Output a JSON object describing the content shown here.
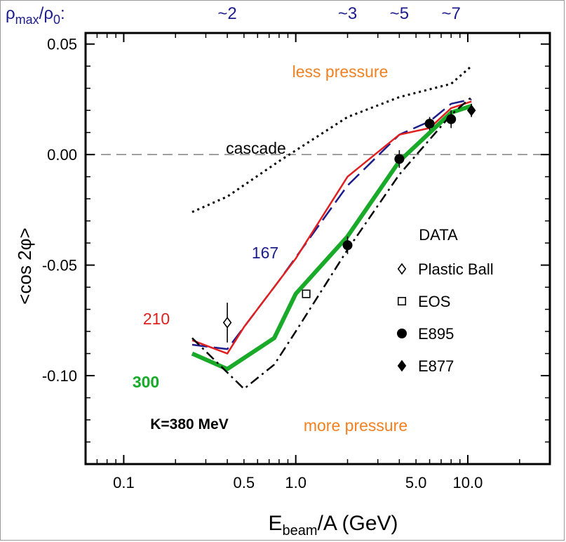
{
  "chart_data": {
    "type": "line",
    "xscale": "log",
    "xlim": [
      0.06,
      30
    ],
    "ylim": [
      -0.14,
      0.055
    ],
    "xlabel_main": "E",
    "xlabel_sub": "beam",
    "xlabel_rest": "/A (GeV)",
    "ylabel": "<cos 2φ>",
    "x_ticks": [
      {
        "value": 0.1,
        "label": "0.1"
      },
      {
        "value": 0.5,
        "label": "0.5"
      },
      {
        "value": 1.0,
        "label": "1.0"
      },
      {
        "value": 5.0,
        "label": "5.0"
      },
      {
        "value": 10.0,
        "label": "10.0"
      }
    ],
    "y_ticks": [
      {
        "value": 0.05,
        "label": "0.05"
      },
      {
        "value": 0.0,
        "label": "0.00"
      },
      {
        "value": -0.05,
        "label": "-0.05"
      },
      {
        "value": -0.1,
        "label": "-0.10"
      }
    ],
    "top_axis": {
      "label_main": "ρ",
      "label_sub1": "max",
      "label_mid": "/ρ",
      "label_sub2": "0",
      "label_end": ":",
      "ticks": [
        {
          "value": 0.4,
          "label": "~2"
        },
        {
          "value": 2.0,
          "label": "~3"
        },
        {
          "value": 4.0,
          "label": "~5"
        },
        {
          "value": 8.0,
          "label": "~7"
        }
      ]
    },
    "series": [
      {
        "name": "cascade",
        "color": "#000000",
        "style": "dotted",
        "width": 3,
        "x": [
          0.25,
          0.4,
          0.8,
          2.0,
          4.0,
          8.0,
          10.5
        ],
        "y": [
          -0.026,
          -0.019,
          -0.003,
          0.017,
          0.026,
          0.032,
          0.04
        ]
      },
      {
        "name": "167",
        "color": "#1c1c8c",
        "style": "dashed",
        "width": 2.5,
        "x": [
          0.25,
          0.4,
          0.8,
          2.0,
          4.0,
          6.0,
          8.0,
          10.5
        ],
        "y": [
          -0.086,
          -0.088,
          -0.057,
          -0.014,
          0.009,
          0.015,
          0.023,
          0.025
        ]
      },
      {
        "name": "210",
        "color": "#e02020",
        "style": "solid",
        "width": 2.5,
        "x": [
          0.25,
          0.4,
          0.5,
          1.0,
          2.0,
          4.0,
          6.0,
          8.0,
          10.5
        ],
        "y": [
          -0.084,
          -0.09,
          -0.078,
          -0.047,
          -0.01,
          0.009,
          0.012,
          0.021,
          0.024
        ]
      },
      {
        "name": "300",
        "color": "#1aaa2a",
        "style": "solid",
        "width": 6,
        "x": [
          0.25,
          0.4,
          0.75,
          1.0,
          2.0,
          4.0,
          8.0,
          10.5
        ],
        "y": [
          -0.09,
          -0.097,
          -0.083,
          -0.063,
          -0.037,
          -0.003,
          0.019,
          0.022
        ]
      },
      {
        "name": "K=380 MeV",
        "color": "#000000",
        "style": "dashdot",
        "width": 2.5,
        "x": [
          0.25,
          0.5,
          0.75,
          1.0,
          2.0,
          4.0,
          8.0,
          10.5
        ],
        "y": [
          -0.083,
          -0.106,
          -0.095,
          -0.08,
          -0.043,
          -0.009,
          0.018,
          0.026
        ]
      }
    ],
    "data_points": [
      {
        "name": "Plastic Ball",
        "marker": "diamond-open",
        "x": 0.4,
        "y": -0.076,
        "err": 0.009
      },
      {
        "name": "EOS",
        "marker": "square-open",
        "x": 1.15,
        "y": -0.063,
        "err": 0
      },
      {
        "name": "E895",
        "marker": "circle-filled",
        "points": [
          {
            "x": 2.0,
            "y": -0.041,
            "err": 0.004
          },
          {
            "x": 4.0,
            "y": -0.002,
            "err": 0.004
          },
          {
            "x": 6.0,
            "y": 0.014,
            "err": 0.003
          },
          {
            "x": 8.0,
            "y": 0.016,
            "err": 0.004
          }
        ]
      },
      {
        "name": "E877",
        "marker": "diamond-filled",
        "points": [
          {
            "x": 10.5,
            "y": 0.02,
            "err": 0.003
          }
        ]
      }
    ],
    "annotations": {
      "less": "less pressure",
      "more": "more pressure",
      "cascade": "cascade",
      "l167": "167",
      "l210": "210",
      "l300": "300",
      "k380": "K=380 MeV",
      "data_title": "DATA"
    },
    "legend": {
      "entries": [
        {
          "marker": "diamond-open",
          "label": "Plastic Ball"
        },
        {
          "marker": "square-open",
          "label": "EOS"
        },
        {
          "marker": "circle-filled",
          "label": "E895"
        },
        {
          "marker": "diamond-filled",
          "label": "E877"
        }
      ]
    },
    "colors": {
      "annotation_orange": "#f08020",
      "top_axis_blue": "#1c1c8c",
      "label_red": "#e02020",
      "label_green": "#1aaa2a",
      "zero_line": "#808080"
    }
  }
}
